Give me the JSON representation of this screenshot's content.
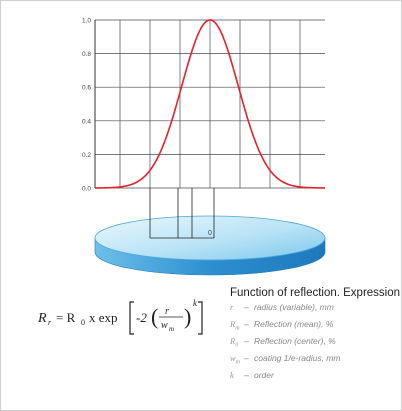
{
  "chart_data": {
    "type": "line",
    "title": "",
    "xlabel": "",
    "ylabel": "",
    "yticks": [
      "0.0",
      "0.2",
      "0.4",
      "0.6",
      "0.8",
      "1.0"
    ],
    "ylim": [
      0,
      1
    ],
    "series": [
      {
        "curve": "gaussian",
        "peak": 1.0
      }
    ],
    "grid": true,
    "color": "#e8202a"
  },
  "disc": {
    "center_label": "0",
    "top_color": "#bfe6f7",
    "side_color": "#2f9ad6"
  },
  "formula": {
    "lhs": "R",
    "lhs_sub": "r",
    "eq": "= R",
    "r0_sub": "0",
    "times": "x exp",
    "neg2": "-2",
    "num": "r",
    "den": "w",
    "den_sub": "m",
    "exp": "k"
  },
  "legend": {
    "title": "Function of reflection. Expression",
    "items": [
      {
        "sym": "r",
        "sub": "",
        "text": "radius (variable), mm"
      },
      {
        "sym": "R",
        "sub": "m",
        "text": "Reflection (mean), %"
      },
      {
        "sym": "R",
        "sub": "0",
        "text": "Reflection (center), %"
      },
      {
        "sym": "w",
        "sub": "m",
        "text": "coating 1/e-radius, mm"
      },
      {
        "sym": "k",
        "sub": "",
        "text": "order"
      }
    ]
  }
}
